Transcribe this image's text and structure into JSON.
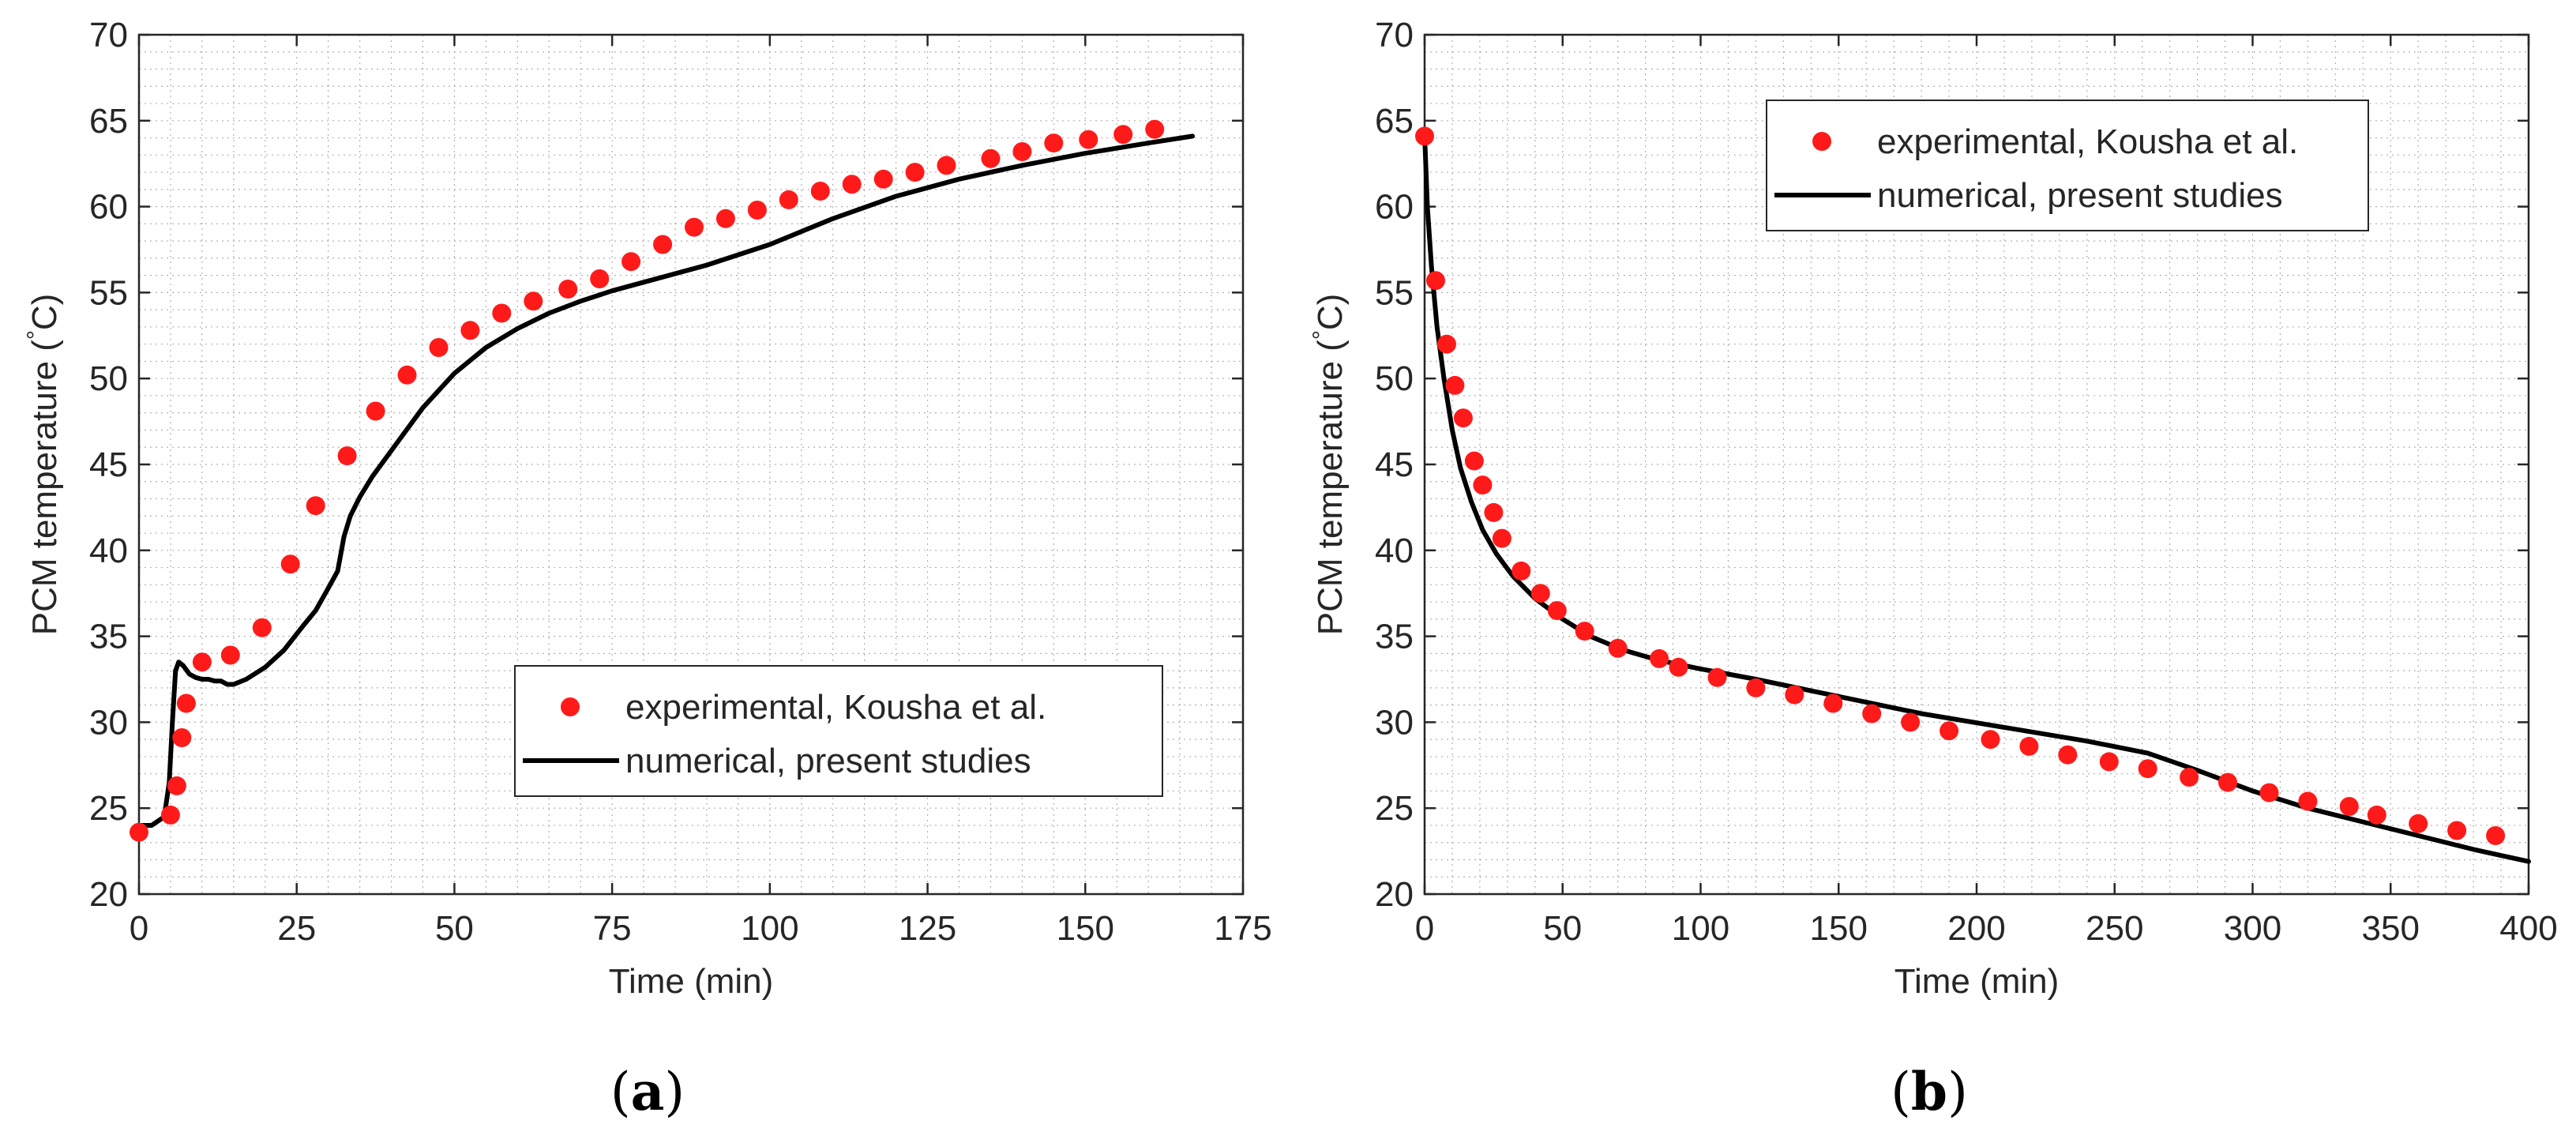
{
  "colors": {
    "experimental": "#ff1a1a",
    "numerical": "#000000",
    "axis": "#262626",
    "grid": "#b0b0b0"
  },
  "chart_data": [
    {
      "type": "scatter+line",
      "panel_label": "a",
      "xlabel": "Time (min)",
      "ylabel": "PCM temperature (",
      "ylabel_unit": "C)",
      "ylabel_degree": "°",
      "xlim": [
        0,
        175
      ],
      "ylim": [
        20,
        70
      ],
      "xticks": [
        0,
        25,
        50,
        75,
        100,
        125,
        150,
        175
      ],
      "yticks": [
        20,
        25,
        30,
        35,
        40,
        45,
        50,
        55,
        60,
        65,
        70
      ],
      "grid": "minor dotted",
      "legend_position": "bottom-right",
      "series": [
        {
          "name": "experimental, Kousha et al.",
          "kind": "markers",
          "x": [
            0,
            5,
            6,
            6.8,
            7.5,
            10,
            14.5,
            19.5,
            24,
            28,
            33,
            37.5,
            42.5,
            47.5,
            52.5,
            57.5,
            62.5,
            68,
            73,
            78,
            83,
            88,
            93,
            98,
            103,
            108,
            113,
            118,
            123,
            128,
            135,
            140,
            145,
            150.5,
            156,
            161
          ],
          "y": [
            23.6,
            24.6,
            26.3,
            29.1,
            31.1,
            33.5,
            33.9,
            35.5,
            39.2,
            42.6,
            45.5,
            48.1,
            50.2,
            51.8,
            52.8,
            53.8,
            54.5,
            55.2,
            55.8,
            56.8,
            57.8,
            58.8,
            59.3,
            59.8,
            60.4,
            60.9,
            61.3,
            61.6,
            62.0,
            62.4,
            62.8,
            63.2,
            63.7,
            63.9,
            64.2,
            64.5
          ]
        },
        {
          "name": "numerical, present studies",
          "kind": "line",
          "x": [
            0,
            2,
            4,
            4.8,
            5.3,
            5.8,
            6.3,
            7,
            8,
            9,
            10,
            11,
            12,
            13,
            14,
            15,
            17,
            20,
            23,
            26,
            28,
            30,
            31.5,
            32.5,
            33.5,
            35,
            37,
            40,
            45,
            50,
            55,
            60,
            65,
            70,
            75,
            80,
            90,
            100,
            110,
            120,
            130,
            140,
            150,
            160,
            167
          ],
          "y": [
            24.0,
            24.0,
            24.5,
            26.5,
            30.0,
            33.0,
            33.5,
            33.3,
            32.8,
            32.6,
            32.5,
            32.5,
            32.4,
            32.4,
            32.2,
            32.2,
            32.5,
            33.2,
            34.2,
            35.6,
            36.5,
            37.8,
            38.8,
            40.8,
            42.0,
            43.1,
            44.3,
            45.8,
            48.3,
            50.3,
            51.8,
            52.9,
            53.8,
            54.5,
            55.1,
            55.6,
            56.6,
            57.8,
            59.3,
            60.6,
            61.6,
            62.4,
            63.1,
            63.7,
            64.1
          ]
        }
      ]
    },
    {
      "type": "scatter+line",
      "panel_label": "b",
      "xlabel": "Time (min)",
      "ylabel": "PCM temperature (",
      "ylabel_unit": "C)",
      "ylabel_degree": "°",
      "xlim": [
        0,
        400
      ],
      "ylim": [
        20,
        70
      ],
      "xticks": [
        0,
        50,
        100,
        150,
        200,
        250,
        300,
        350,
        400
      ],
      "yticks": [
        20,
        25,
        30,
        35,
        40,
        45,
        50,
        55,
        60,
        65,
        70
      ],
      "grid": "minor dotted",
      "legend_position": "top-right",
      "series": [
        {
          "name": "experimental, Kousha et al.",
          "kind": "markers",
          "x": [
            0,
            4,
            8,
            11,
            14,
            18,
            21,
            25,
            28,
            35,
            42,
            48,
            58,
            70,
            85,
            92,
            106,
            120,
            134,
            148,
            162,
            176,
            190,
            205,
            219,
            233,
            248,
            262,
            277,
            291,
            306,
            320,
            335,
            345,
            360,
            374,
            388
          ],
          "y": [
            64.1,
            55.7,
            52.0,
            49.6,
            47.7,
            45.2,
            43.8,
            42.2,
            40.7,
            38.8,
            37.5,
            36.5,
            35.3,
            34.3,
            33.7,
            33.2,
            32.6,
            32.0,
            31.6,
            31.1,
            30.5,
            30.0,
            29.5,
            29.0,
            28.6,
            28.1,
            27.7,
            27.3,
            26.8,
            26.5,
            25.9,
            25.4,
            25.1,
            24.6,
            24.1,
            23.7,
            23.4
          ]
        },
        {
          "name": "numerical, present studies",
          "kind": "line",
          "x": [
            0,
            1,
            2.5,
            4.5,
            7,
            10,
            13,
            17,
            21,
            26,
            32,
            40,
            50,
            60,
            72,
            85,
            100,
            120,
            150,
            180,
            210,
            240,
            262,
            280,
            300,
            320,
            340,
            360,
            380,
            400
          ],
          "y": [
            64.2,
            60.0,
            56.5,
            53.0,
            50.0,
            47.0,
            44.8,
            42.8,
            41.2,
            39.8,
            38.5,
            37.2,
            36.0,
            35.0,
            34.2,
            33.6,
            33.1,
            32.5,
            31.5,
            30.5,
            29.7,
            28.9,
            28.2,
            27.2,
            26.0,
            25.0,
            24.2,
            23.4,
            22.6,
            21.9
          ]
        }
      ]
    }
  ]
}
